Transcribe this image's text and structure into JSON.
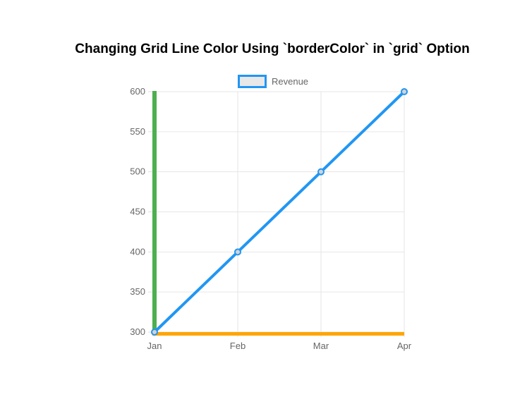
{
  "chart_data": {
    "type": "line",
    "title": "Changing Grid Line Color Using `borderColor` in `grid` Option",
    "categories": [
      "Jan",
      "Feb",
      "Mar",
      "Apr"
    ],
    "series": [
      {
        "name": "Revenue",
        "values": [
          300,
          400,
          500,
          600
        ]
      }
    ],
    "xlabel": "",
    "ylabel": "",
    "ylim": [
      300,
      600
    ],
    "y_ticks": [
      300,
      350,
      400,
      450,
      500,
      550,
      600
    ],
    "grid": true,
    "legend_position": "top",
    "colors": {
      "line": "#2196F3",
      "point_fill": "#D3D3D3",
      "y_axis_border": "#4CAF50",
      "x_axis_border": "#FFA500",
      "grid_line": "#E6E6E6",
      "tick_mark": "#DCDCDC",
      "tick_text": "#666666",
      "title_text": "#000000",
      "legend_swatch_fill": "#E8E8E8",
      "background": "#FFFFFF"
    }
  }
}
